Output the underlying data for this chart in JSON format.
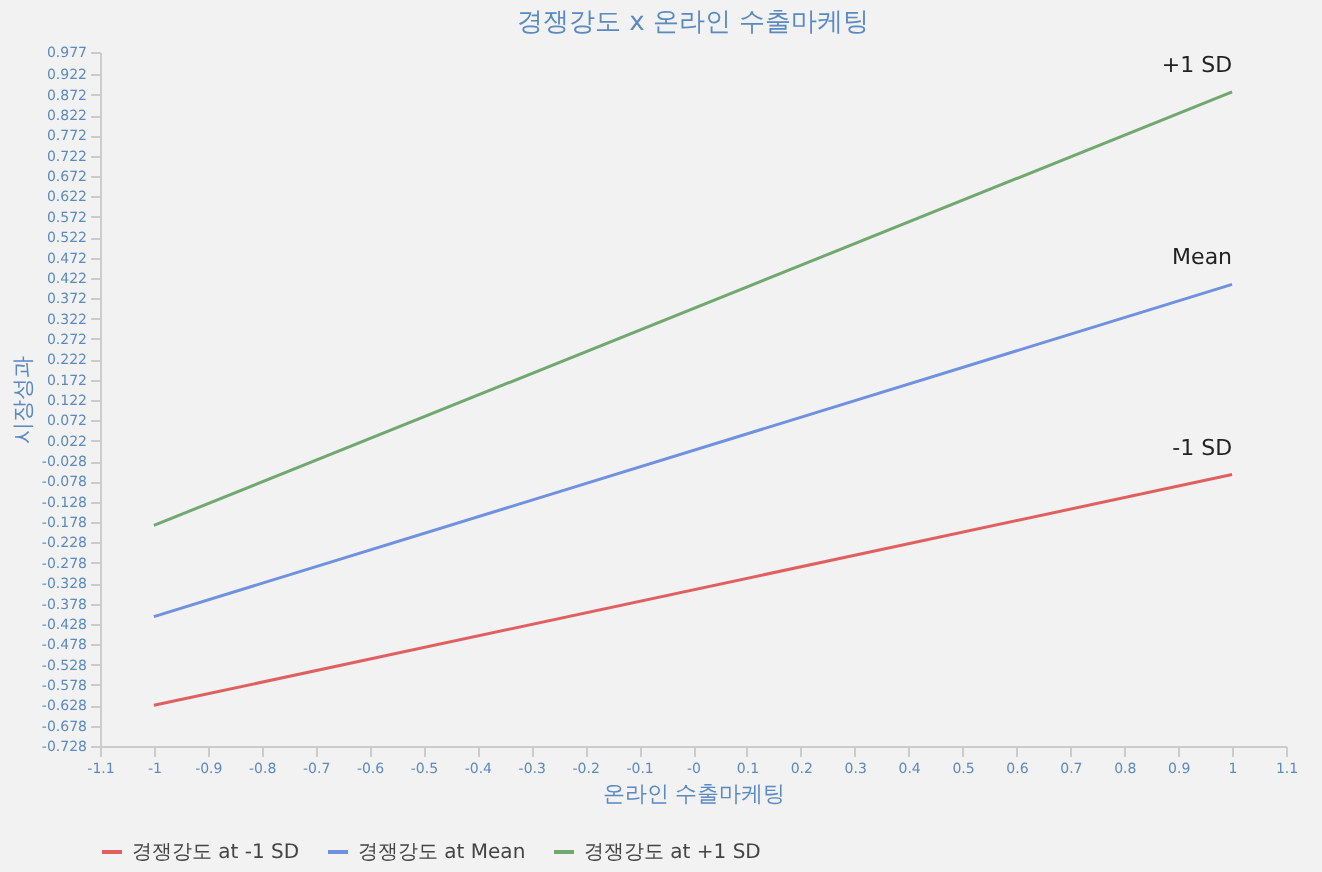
{
  "chart_data": {
    "type": "line",
    "title": "경쟁강도 x 온라인 수출마케팅",
    "xlabel": "온라인 수출마케팅",
    "ylabel": "시장성과",
    "x": [
      -1,
      1
    ],
    "series": [
      {
        "name": "경쟁강도 at -1 SD",
        "color": "#e06060",
        "values": [
          -0.628,
          -0.061
        ]
      },
      {
        "name": "경쟁강도 at Mean",
        "color": "#7090e0",
        "values": [
          -0.41,
          0.406
        ]
      },
      {
        "name": "경쟁강도 at +1 SD",
        "color": "#70a870",
        "values": [
          -0.186,
          0.879
        ]
      }
    ],
    "annotations": [
      "-1 SD",
      "Mean",
      "+1 SD"
    ],
    "xlim": [
      -1.1,
      1.1
    ],
    "xticks": [
      -1.1,
      -1,
      -0.9,
      -0.8,
      -0.7,
      -0.6,
      -0.5,
      -0.4,
      -0.3,
      -0.2,
      -0.1,
      {
        "value": 0,
        "label": "-0"
      },
      0.1,
      0.2,
      0.3,
      0.4,
      0.5,
      0.6,
      0.7,
      0.8,
      0.9,
      1,
      1.1
    ],
    "ylim": [
      -0.728,
      0.977
    ],
    "yticks": [
      0.977,
      0.922,
      0.872,
      0.822,
      0.772,
      0.722,
      0.672,
      0.622,
      0.572,
      0.522,
      0.472,
      0.422,
      0.372,
      0.322,
      0.272,
      0.222,
      0.172,
      0.122,
      0.072,
      0.022,
      -0.028,
      -0.078,
      -0.128,
      -0.178,
      -0.228,
      -0.278,
      -0.328,
      -0.378,
      -0.428,
      -0.478,
      -0.528,
      -0.578,
      -0.628,
      -0.678,
      -0.728
    ],
    "grid": false,
    "legend": "bottom",
    "marker": "none",
    "line_style": "solid"
  }
}
